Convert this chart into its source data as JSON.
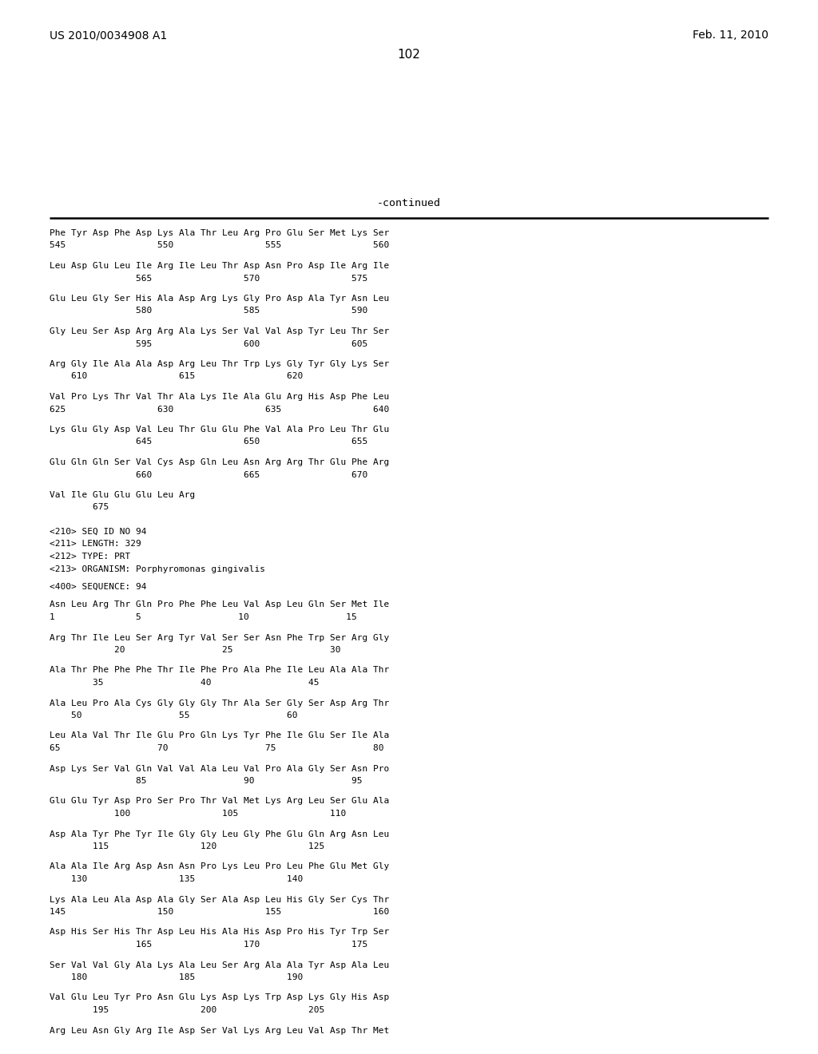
{
  "header_left": "US 2010/0034908 A1",
  "header_right": "Feb. 11, 2010",
  "page_number": "102",
  "continued_label": "-continued",
  "background_color": "#ffffff",
  "text_color": "#000000",
  "content_lines": [
    [
      "Phe Tyr Asp Phe Asp Lys Ala Thr Leu Arg Pro Glu Ser Met Lys Ser",
      "545                 550                 555                 560"
    ],
    [
      "Leu Asp Glu Leu Ile Arg Ile Leu Thr Asp Asn Pro Asp Ile Arg Ile",
      "                565                 570                 575"
    ],
    [
      "Glu Leu Gly Ser His Ala Asp Arg Lys Gly Pro Asp Ala Tyr Asn Leu",
      "                580                 585                 590"
    ],
    [
      "Gly Leu Ser Asp Arg Arg Ala Lys Ser Val Val Asp Tyr Leu Thr Ser",
      "                595                 600                 605"
    ],
    [
      "Arg Gly Ile Ala Ala Asp Arg Leu Thr Trp Lys Gly Tyr Gly Lys Ser",
      "    610                 615                 620"
    ],
    [
      "Val Pro Lys Thr Val Thr Ala Lys Ile Ala Glu Arg His Asp Phe Leu",
      "625                 630                 635                 640"
    ],
    [
      "Lys Glu Gly Asp Val Leu Thr Glu Glu Phe Val Ala Pro Leu Thr Glu",
      "                645                 650                 655"
    ],
    [
      "Glu Gln Gln Ser Val Cys Asp Gln Leu Asn Arg Arg Thr Glu Phe Arg",
      "                660                 665                 670"
    ],
    [
      "Val Ile Glu Glu Glu Leu Arg",
      "        675"
    ]
  ],
  "meta_lines": [
    "<210> SEQ ID NO 94",
    "<211> LENGTH: 329",
    "<212> TYPE: PRT",
    "<213> ORGANISM: Porphyromonas gingivalis"
  ],
  "seq_label": "<400> SEQUENCE: 94",
  "seq_lines": [
    [
      "Asn Leu Arg Thr Gln Pro Phe Phe Leu Val Asp Leu Gln Ser Met Ile",
      "1               5                  10                  15"
    ],
    [
      "Arg Thr Ile Leu Ser Arg Tyr Val Ser Ser Asn Phe Trp Ser Arg Gly",
      "            20                  25                  30"
    ],
    [
      "Ala Thr Phe Phe Phe Thr Ile Phe Pro Ala Phe Ile Leu Ala Ala Thr",
      "        35                  40                  45"
    ],
    [
      "Ala Leu Pro Ala Cys Gly Gly Gly Thr Ala Ser Gly Ser Asp Arg Thr",
      "    50                  55                  60"
    ],
    [
      "Leu Ala Val Thr Ile Glu Pro Gln Lys Tyr Phe Ile Glu Ser Ile Ala",
      "65                  70                  75                  80"
    ],
    [
      "Asp Lys Ser Val Gln Val Val Ala Leu Val Pro Ala Gly Ser Asn Pro",
      "                85                  90                  95"
    ],
    [
      "Glu Glu Tyr Asp Pro Ser Pro Thr Val Met Lys Arg Leu Ser Glu Ala",
      "            100                 105                 110"
    ],
    [
      "Asp Ala Tyr Phe Tyr Ile Gly Gly Leu Gly Phe Glu Gln Arg Asn Leu",
      "        115                 120                 125"
    ],
    [
      "Ala Ala Ile Arg Asp Asn Asn Pro Lys Leu Pro Leu Phe Glu Met Gly",
      "    130                 135                 140"
    ],
    [
      "Lys Ala Leu Ala Asp Ala Gly Ser Ala Asp Leu His Gly Ser Cys Thr",
      "145                 150                 155                 160"
    ],
    [
      "Asp His Ser His Thr Asp Leu His Ala His Asp Pro His Tyr Trp Ser",
      "                165                 170                 175"
    ],
    [
      "Ser Val Val Gly Ala Lys Ala Leu Ser Arg Ala Ala Tyr Asp Ala Leu",
      "    180                 185                 190"
    ],
    [
      "Val Glu Leu Tyr Pro Asn Glu Lys Asp Lys Trp Asp Lys Gly His Asp",
      "        195                 200                 205"
    ],
    [
      "Arg Leu Asn Gly Arg Ile Asp Ser Val Lys Arg Leu Val Asp Thr Met",
      ""
    ]
  ]
}
